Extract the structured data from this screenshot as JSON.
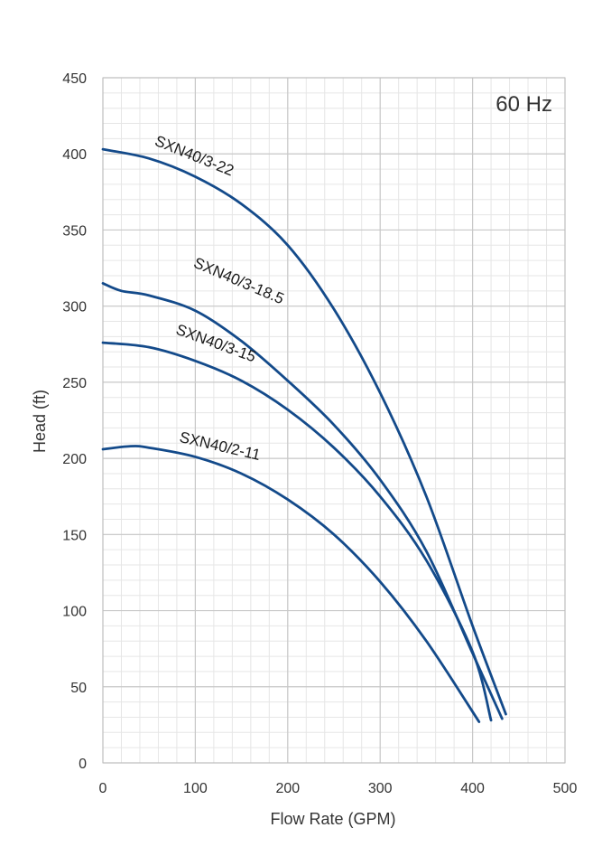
{
  "chart_data": {
    "type": "line",
    "annotation": "60 Hz",
    "xlabel": "Flow Rate (GPM)",
    "ylabel": "Head (ft)",
    "xlim": [
      0,
      500
    ],
    "ylim": [
      0,
      450
    ],
    "x_ticks": [
      "0",
      "100",
      "200",
      "300",
      "400",
      "500"
    ],
    "y_ticks": [
      "0",
      "50",
      "100",
      "150",
      "200",
      "250",
      "300",
      "350",
      "400",
      "450"
    ],
    "grid": true,
    "line_color": "#134a8a",
    "series": [
      {
        "name": "SXN40/3-22",
        "x": [
          0,
          50,
          100,
          150,
          200,
          250,
          300,
          350,
          400,
          436
        ],
        "y": [
          403,
          397,
          385,
          367,
          340,
          298,
          243,
          175,
          90,
          32
        ]
      },
      {
        "name": "SXN40/3-18.5",
        "x": [
          0,
          20,
          50,
          100,
          150,
          200,
          250,
          300,
          350,
          400,
          432
        ],
        "y": [
          315,
          310,
          307,
          297,
          277,
          251,
          222,
          186,
          139,
          72,
          29
        ]
      },
      {
        "name": "SXN40/3-15",
        "x": [
          0,
          50,
          100,
          150,
          200,
          250,
          300,
          350,
          400,
          420
        ],
        "y": [
          276,
          273,
          264,
          251,
          232,
          207,
          175,
          133,
          73,
          28
        ]
      },
      {
        "name": "SXN40/2-11",
        "x": [
          0,
          30,
          50,
          100,
          150,
          200,
          250,
          300,
          350,
          407
        ],
        "y": [
          206,
          208,
          207,
          201,
          190,
          173,
          150,
          119,
          80,
          27
        ]
      }
    ]
  }
}
